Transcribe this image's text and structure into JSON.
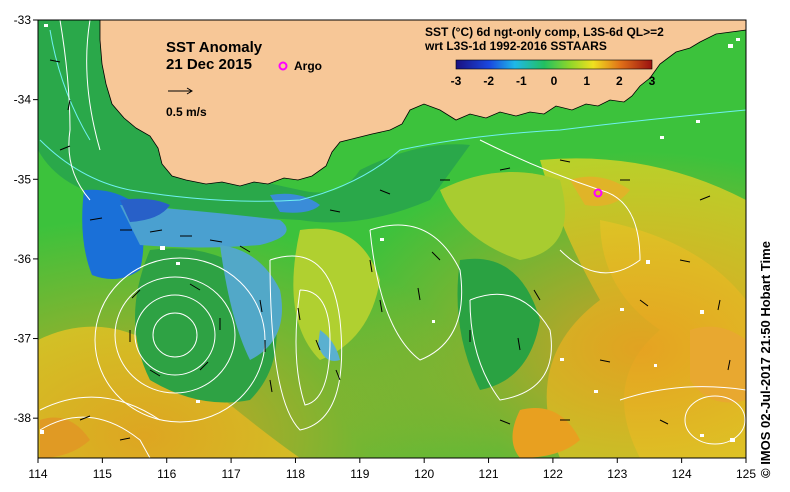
{
  "map": {
    "title": "SST Anomaly",
    "date": "21 Dec 2015",
    "argo_label": "Argo",
    "velocity_scale_label": "0.5 m/s",
    "colorbar": {
      "title_line1": "SST (°C) 6d ngt-only comp, L3S-6d QL>=2",
      "title_line2": "wrt L3S-1d 1992-2016 SSTAARS",
      "tick_labels": [
        "-3",
        "-2",
        "-1",
        "0",
        "1",
        "2",
        "3"
      ],
      "range": [
        -3,
        3
      ]
    },
    "x_axis": {
      "ticks": [
        "114",
        "115",
        "116",
        "117",
        "118",
        "119",
        "120",
        "121",
        "122",
        "123",
        "124",
        "125"
      ],
      "range": [
        114,
        125
      ]
    },
    "y_axis": {
      "ticks": [
        "-33",
        "-34",
        "-35",
        "-36",
        "-37",
        "-38"
      ],
      "range": [
        -38.5,
        -33
      ]
    },
    "credit": "© IMOS 02-Jul-2017 21:50 Hobart Time",
    "colors": {
      "land": "#f7c797",
      "anomaly_positive": "#e8e020",
      "anomaly_neutral": "#2fbf3a",
      "anomaly_negative": "#1a7fd8",
      "argo_marker": "#ff00ff",
      "contours": "#ffffff"
    }
  }
}
